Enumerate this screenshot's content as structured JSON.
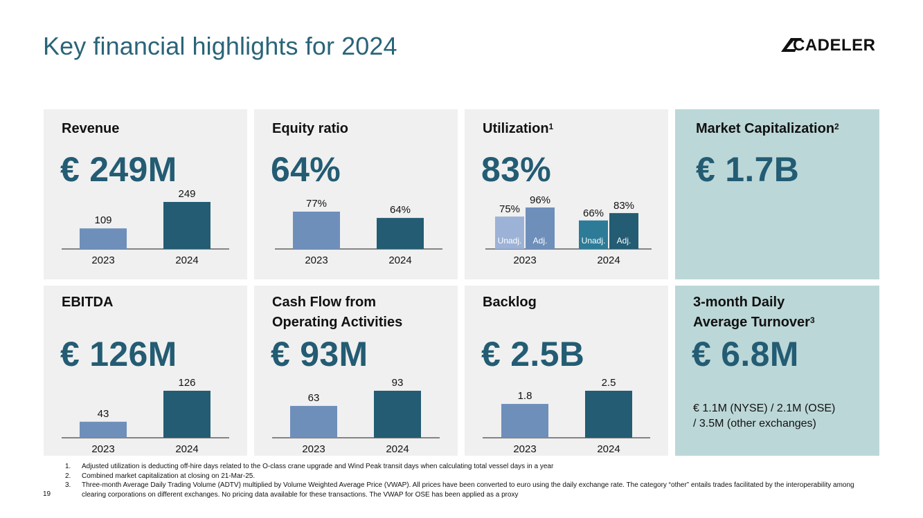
{
  "title": "Key financial highlights for 2024",
  "logo_text": "CADELER",
  "cards": {
    "revenue": {
      "title": "Revenue",
      "value": "€ 249M",
      "bars": [
        {
          "year": "2023",
          "value": 109,
          "label": "109",
          "color": "#6f8fbb"
        },
        {
          "year": "2024",
          "value": 249,
          "label": "249",
          "color": "#235c73"
        }
      ]
    },
    "equity": {
      "title": "Equity ratio",
      "value": "64%",
      "bars": [
        {
          "year": "2023",
          "value": 77,
          "label": "77%",
          "color": "#6f8fbb"
        },
        {
          "year": "2024",
          "value": 64,
          "label": "64%",
          "color": "#235c73"
        }
      ]
    },
    "utilization": {
      "title": "Utilization",
      "sup": "1",
      "value": "83%",
      "groups": [
        {
          "year": "2023",
          "bars": [
            {
              "value": 75,
              "label": "75%",
              "inner": "Unadj.",
              "color": "#9cb2d6"
            },
            {
              "value": 96,
              "label": "96%",
              "inner": "Adj.",
              "color": "#6f8fbb"
            }
          ]
        },
        {
          "year": "2024",
          "bars": [
            {
              "value": 66,
              "label": "66%",
              "inner": "Unadj.",
              "color": "#2d7b97"
            },
            {
              "value": 83,
              "label": "83%",
              "inner": "Adj.",
              "color": "#235c73"
            }
          ]
        }
      ]
    },
    "market_cap": {
      "title": "Market Capitalization",
      "sup": "2",
      "value": "€ 1.7B"
    },
    "ebitda": {
      "title": "EBITDA",
      "value": "€ 126M",
      "bars": [
        {
          "year": "2023",
          "value": 43,
          "label": "43",
          "color": "#6f8fbb"
        },
        {
          "year": "2024",
          "value": 126,
          "label": "126",
          "color": "#235c73"
        }
      ]
    },
    "cashflow": {
      "title_line1": "Cash Flow from",
      "title_line2": "Operating Activities",
      "value": "€ 93M",
      "bars": [
        {
          "year": "2023",
          "value": 63,
          "label": "63",
          "color": "#6f8fbb"
        },
        {
          "year": "2024",
          "value": 93,
          "label": "93",
          "color": "#235c73"
        }
      ]
    },
    "backlog": {
      "title": "Backlog",
      "value": "€ 2.5B",
      "bars": [
        {
          "year": "2023",
          "value": 1.8,
          "label": "1.8",
          "color": "#6f8fbb"
        },
        {
          "year": "2024",
          "value": 2.5,
          "label": "2.5",
          "color": "#235c73"
        }
      ]
    },
    "turnover": {
      "title_line1": "3-month Daily",
      "title_line2": "Average Turnover",
      "sup": "3",
      "value": "€ 6.8M",
      "note_line1": "€ 1.1M (NYSE) / 2.1M (OSE)",
      "note_line2": "/ 3.5M (other exchanges)"
    }
  },
  "footnotes": [
    {
      "num": "1.",
      "text": "Adjusted utilization is deducting off-hire days related to the O-class crane upgrade and Wind Peak transit days when calculating total vessel days in a year"
    },
    {
      "num": "2.",
      "text": "Combined market capitalization at closing on 21-Mar-25."
    },
    {
      "num": "3.",
      "text": "Three-month Average Daily Trading Volume (ADTV) multiplied by Volume Weighted Average Price (VWAP). All prices have been converted to euro using the daily exchange rate. The category “other” entails trades facilitated by the interoperability among clearing corporations on different exchanges. No pricing data available for these transactions. The VWAP for OSE has been applied as a proxy"
    }
  ],
  "page_number": "19",
  "chart_data": [
    {
      "type": "bar",
      "title": "Revenue",
      "categories": [
        "2023",
        "2024"
      ],
      "values": [
        109,
        249
      ]
    },
    {
      "type": "bar",
      "title": "Equity ratio",
      "categories": [
        "2023",
        "2024"
      ],
      "values": [
        77,
        64
      ]
    },
    {
      "type": "bar",
      "title": "Utilization",
      "categories": [
        "2023",
        "2024"
      ],
      "series": [
        {
          "name": "Unadj.",
          "values": [
            75,
            66
          ]
        },
        {
          "name": "Adj.",
          "values": [
            96,
            83
          ]
        }
      ]
    },
    {
      "type": "bar",
      "title": "EBITDA",
      "categories": [
        "2023",
        "2024"
      ],
      "values": [
        43,
        126
      ]
    },
    {
      "type": "bar",
      "title": "Cash Flow from Operating Activities",
      "categories": [
        "2023",
        "2024"
      ],
      "values": [
        63,
        93
      ]
    },
    {
      "type": "bar",
      "title": "Backlog",
      "categories": [
        "2023",
        "2024"
      ],
      "values": [
        1.8,
        2.5
      ]
    }
  ]
}
